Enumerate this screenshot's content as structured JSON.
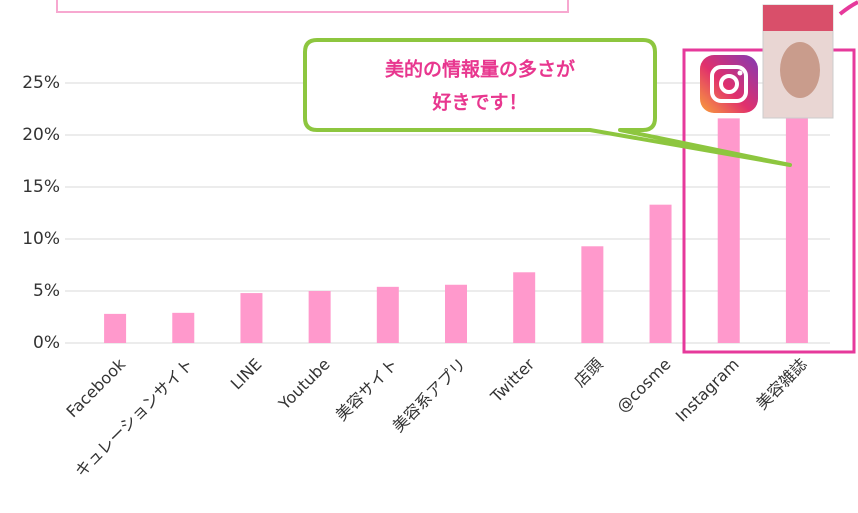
{
  "chart_data": {
    "type": "bar",
    "categories": [
      "Facebook",
      "キュレーションサイト",
      "LINE",
      "Youtube",
      "美容サイト",
      "美容系アプリ",
      "Twitter",
      "店頭",
      "@cosme",
      "Instagram",
      "美容雑誌"
    ],
    "values": [
      2.8,
      2.9,
      4.8,
      5.0,
      5.4,
      5.6,
      6.8,
      9.3,
      13.3,
      21.6,
      21.9
    ],
    "color": "#ff99cc",
    "ylim": [
      0,
      25
    ],
    "yticks": [
      {
        "value": 0,
        "label": "0%"
      },
      {
        "value": 5,
        "label": "5%"
      },
      {
        "value": 10,
        "label": "10%"
      },
      {
        "value": 15,
        "label": "15%"
      },
      {
        "value": 20,
        "label": "20%"
      },
      {
        "value": 25,
        "label": "25%"
      }
    ],
    "grid": true,
    "annotation_lines": [
      "美的の情報量の多さが",
      "好きです！"
    ]
  }
}
